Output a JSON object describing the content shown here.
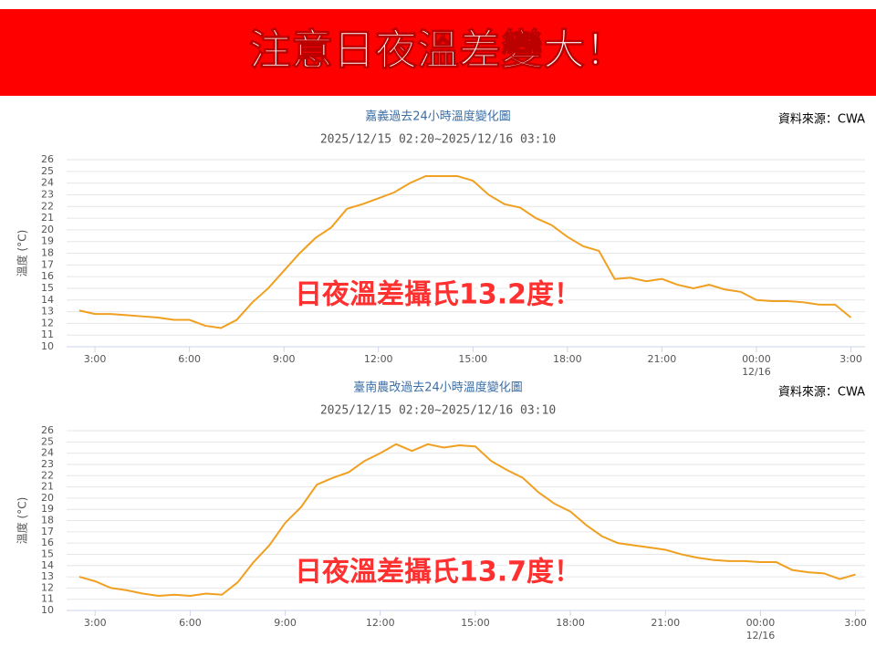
{
  "banner": "注意日夜溫差變大！",
  "chart_data": [
    {
      "type": "line",
      "title": "嘉義過去24小時溫度變化圖",
      "subtitle": "2025/12/15 02:20~2025/12/16 03:10",
      "source": "資料來源：CWA",
      "y_label": "溫度 (°C)",
      "annotation": "日夜溫差攝氏13.2度！",
      "x": [
        2.5,
        3,
        3.5,
        4,
        4.5,
        5,
        5.5,
        6,
        6.5,
        7,
        7.5,
        8,
        8.5,
        9,
        9.5,
        10,
        10.5,
        11,
        11.5,
        12,
        12.5,
        13,
        13.5,
        14,
        14.5,
        15,
        15.5,
        16,
        16.5,
        17,
        17.5,
        18,
        18.5,
        19,
        19.5,
        20,
        20.5,
        21,
        21.5,
        22,
        22.5,
        23,
        23.5,
        24,
        24.5,
        25,
        25.5,
        26,
        26.5,
        27
      ],
      "series": [
        {
          "name": "嘉義",
          "color": "#f0a020",
          "values": [
            13.1,
            12.8,
            12.8,
            12.7,
            12.6,
            12.5,
            12.3,
            12.3,
            11.8,
            11.6,
            12.3,
            13.8,
            15.0,
            16.5,
            18.0,
            19.3,
            20.2,
            21.8,
            22.2,
            22.7,
            23.2,
            24.0,
            24.6,
            24.6,
            24.6,
            24.2,
            23.0,
            22.2,
            21.9,
            21.0,
            20.4,
            19.4,
            18.6,
            18.2,
            15.8,
            15.9,
            15.6,
            15.8,
            15.3,
            15.0,
            15.3,
            14.9,
            14.7,
            14.0,
            13.9,
            13.9,
            13.8,
            13.6,
            13.6,
            12.5
          ]
        }
      ],
      "xlim": [
        2.1,
        27.45
      ],
      "xticks": [
        {
          "value": 3,
          "label": "3:00"
        },
        {
          "value": 6,
          "label": "6:00"
        },
        {
          "value": 9,
          "label": "9:00"
        },
        {
          "value": 12,
          "label": "12:00"
        },
        {
          "value": 15,
          "label": "15:00"
        },
        {
          "value": 18,
          "label": "18:00"
        },
        {
          "value": 21,
          "label": "21:00"
        },
        {
          "value": 24,
          "label": "00:00",
          "sublabel": "12/16"
        },
        {
          "value": 27,
          "label": "3:00"
        }
      ],
      "ylim": [
        10,
        26
      ],
      "yticks": [
        10,
        11,
        12,
        13,
        14,
        15,
        16,
        17,
        18,
        19,
        20,
        21,
        22,
        23,
        24,
        25,
        26
      ],
      "grid": true
    },
    {
      "type": "line",
      "title": "臺南農改過去24小時溫度變化圖",
      "subtitle": "2025/12/15 02:20~2025/12/16 03:10",
      "source": "資料來源：CWA",
      "y_label": "溫度 (°C)",
      "annotation": "日夜溫差攝氏13.7度！",
      "x": [
        2.5,
        3,
        3.5,
        4,
        4.5,
        5,
        5.5,
        6,
        6.5,
        7,
        7.5,
        8,
        8.5,
        9,
        9.5,
        10,
        10.5,
        11,
        11.5,
        12,
        12.5,
        13,
        13.5,
        14,
        14.5,
        15,
        15.5,
        16,
        16.5,
        17,
        17.5,
        18,
        18.5,
        19,
        19.5,
        20,
        20.5,
        21,
        21.5,
        22,
        22.5,
        23,
        23.5,
        24,
        24.5,
        25,
        25.5,
        26,
        26.5,
        27
      ],
      "series": [
        {
          "name": "臺南農改",
          "color": "#f0a020",
          "values": [
            13.0,
            12.6,
            12.0,
            11.8,
            11.5,
            11.3,
            11.4,
            11.3,
            11.5,
            11.4,
            12.5,
            14.3,
            15.8,
            17.8,
            19.2,
            21.2,
            21.8,
            22.3,
            23.3,
            24.0,
            24.8,
            24.2,
            24.8,
            24.5,
            24.7,
            24.6,
            23.3,
            22.5,
            21.8,
            20.5,
            19.5,
            18.8,
            17.6,
            16.6,
            16.0,
            15.8,
            15.6,
            15.4,
            15.0,
            14.7,
            14.5,
            14.4,
            14.4,
            14.3,
            14.3,
            13.6,
            13.4,
            13.3,
            12.8,
            13.2
          ]
        }
      ],
      "xlim": [
        2.1,
        27.3
      ],
      "xticks": [
        {
          "value": 3,
          "label": "3:00"
        },
        {
          "value": 6,
          "label": "6:00"
        },
        {
          "value": 9,
          "label": "9:00"
        },
        {
          "value": 12,
          "label": "12:00"
        },
        {
          "value": 15,
          "label": "15:00"
        },
        {
          "value": 18,
          "label": "18:00"
        },
        {
          "value": 21,
          "label": "21:00"
        },
        {
          "value": 24,
          "label": "00:00",
          "sublabel": "12/16"
        },
        {
          "value": 27,
          "label": "3:00"
        }
      ],
      "ylim": [
        10,
        26
      ],
      "yticks": [
        10,
        11,
        12,
        13,
        14,
        15,
        16,
        17,
        18,
        19,
        20,
        21,
        22,
        23,
        24,
        25,
        26
      ],
      "grid": true
    }
  ]
}
